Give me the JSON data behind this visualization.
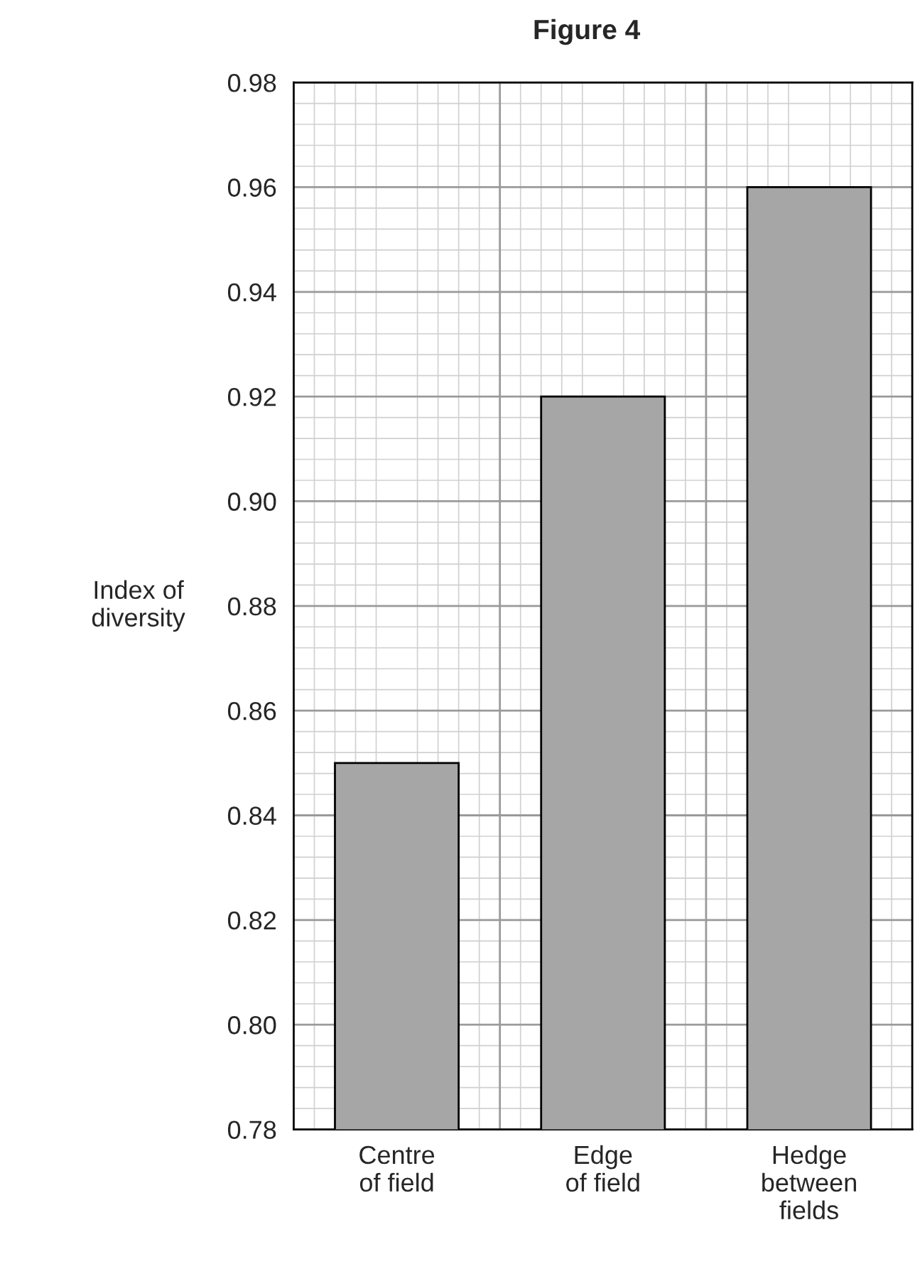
{
  "chart_data": {
    "type": "bar",
    "title": "Figure 4",
    "ylabel": "Index of\ndiversity",
    "categories": [
      "Centre\nof field",
      "Edge\nof field",
      "Hedge\nbetween\nfields"
    ],
    "values": [
      0.85,
      0.92,
      0.96
    ],
    "color": "#a6a6a6",
    "ylim": [
      0.78,
      0.98
    ],
    "yticks": [
      {
        "value": 0.78,
        "label": "0.78"
      },
      {
        "value": 0.8,
        "label": "0.80"
      },
      {
        "value": 0.82,
        "label": "0.82"
      },
      {
        "value": 0.84,
        "label": "0.84"
      },
      {
        "value": 0.86,
        "label": "0.86"
      },
      {
        "value": 0.88,
        "label": "0.88"
      },
      {
        "value": 0.9,
        "label": "0.90"
      },
      {
        "value": 0.92,
        "label": "0.92"
      },
      {
        "value": 0.94,
        "label": "0.94"
      },
      {
        "value": 0.96,
        "label": "0.96"
      },
      {
        "value": 0.98,
        "label": "0.98"
      }
    ],
    "grid": true
  }
}
